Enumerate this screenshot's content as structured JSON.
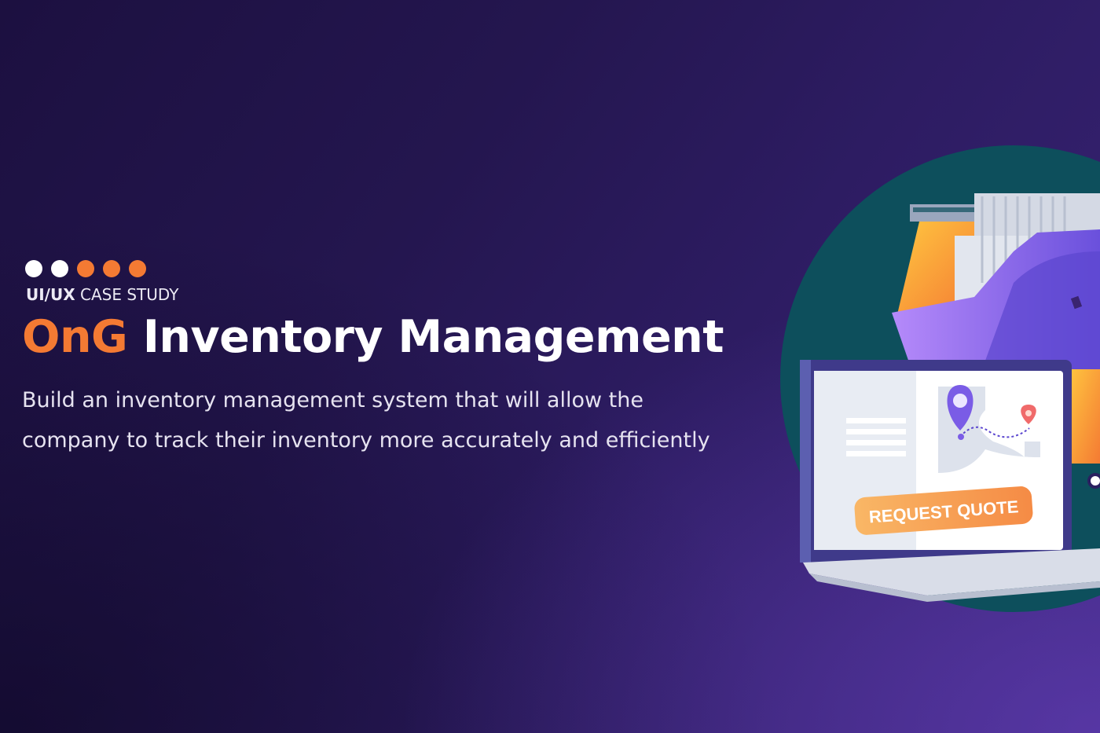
{
  "hero": {
    "dot_colors": [
      "#ffffff",
      "#ffffff",
      "#f47a33",
      "#f47a33",
      "#f47a33"
    ],
    "eyebrow_bold": "UI/UX",
    "eyebrow_rest": "CASE STUDY",
    "title_brand": "OnG",
    "title_rest": "Inventory Management",
    "description": "Build an inventory management system that will allow the company to track their inventory more accurately and efficiently"
  },
  "illustration": {
    "button_label": "REQUEST QUOTE",
    "colors": {
      "accent": "#f47a33",
      "circle": "#0d4f5c",
      "ship": "#8b6cf0"
    }
  }
}
